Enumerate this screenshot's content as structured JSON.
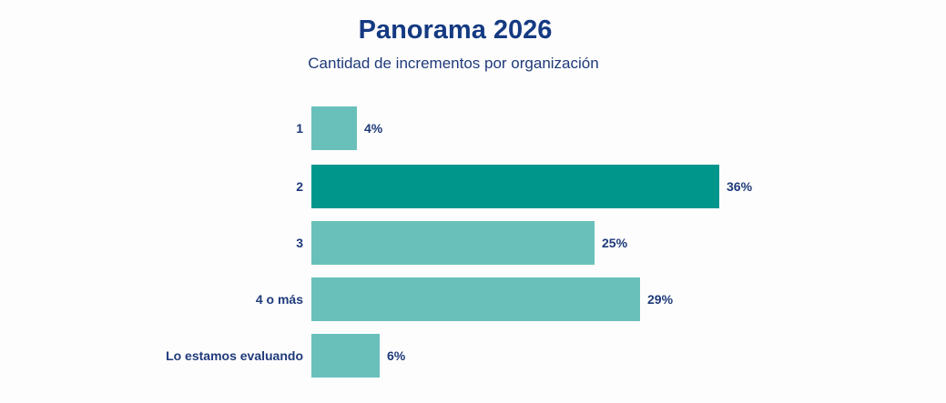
{
  "chart_data": {
    "type": "bar",
    "orientation": "horizontal",
    "title": "Panorama 2026",
    "subtitle": "Cantidad de incrementos por organización",
    "categories": [
      "1",
      "2",
      "3",
      "4 o más",
      "Lo estamos evaluando"
    ],
    "values": [
      4,
      36,
      25,
      29,
      6
    ],
    "value_labels": [
      "4%",
      "36%",
      "25%",
      "29%",
      "6%"
    ],
    "unit": "%",
    "colors": [
      "#69c0bb",
      "#00968c",
      "#69c0bb",
      "#69c0bb",
      "#69c0bb"
    ],
    "highlight_index": 1,
    "xlabel": "",
    "ylabel": "",
    "grid": false,
    "legend": null
  }
}
